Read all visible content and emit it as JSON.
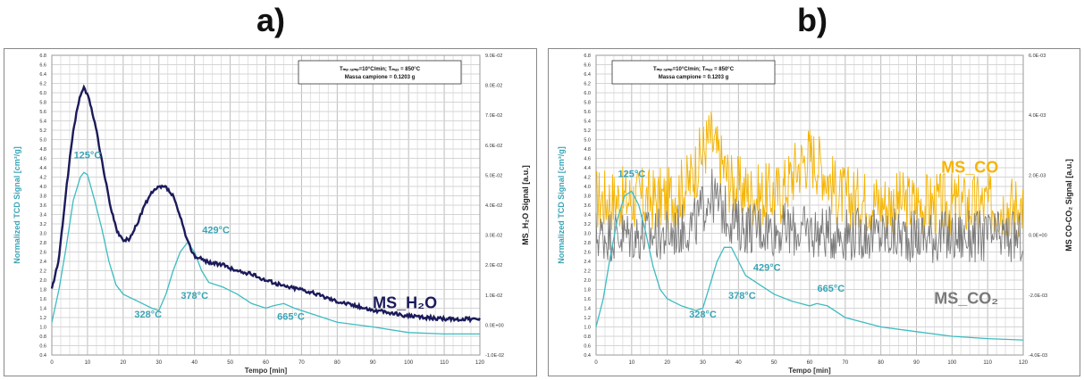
{
  "panels": [
    {
      "label": "a)"
    },
    {
      "label": "b)"
    }
  ],
  "chart_data": [
    {
      "type": "line",
      "panel": "a)",
      "xlabel": "Tempo [min]",
      "ylabel": "Normalized TCD Signal [cm³/g]",
      "ylabel2": "MS_H₂O Signal [a.u.]",
      "xlim": [
        0,
        120
      ],
      "ylim": [
        0.4,
        6.8
      ],
      "y2lim": [
        -0.01,
        0.09
      ],
      "xticks": [
        "0",
        "10",
        "20",
        "30",
        "40",
        "50",
        "60",
        "70",
        "80",
        "90",
        "100",
        "110",
        "120"
      ],
      "yticks": [
        "0.4",
        "0.6",
        "0.8",
        "1.0",
        "1.2",
        "1.4",
        "1.6",
        "1.8",
        "2.0",
        "2.2",
        "2.4",
        "2.6",
        "2.8",
        "3.0",
        "3.2",
        "3.4",
        "3.6",
        "3.8",
        "4.0",
        "4.2",
        "4.4",
        "4.6",
        "4.8",
        "5.0",
        "5.2",
        "5.4",
        "5.6",
        "5.8",
        "6.0",
        "6.2",
        "6.4",
        "6.6",
        "6.8"
      ],
      "y2ticks": [
        "-1.0E-02",
        "0.0E+00",
        "1.0E-02",
        "2.0E-02",
        "3.0E-02",
        "4.0E-02",
        "5.0E-02",
        "6.0E-02",
        "7.0E-02",
        "8.0E-02",
        "9.0E-02"
      ],
      "grid": true,
      "infobox": {
        "line1": "Tₘₚ ᵣₐₘₚ=10°C/min; Tₘₐₓ = 850°C",
        "line2": "Massa campione = 0.1203 g"
      },
      "series": [
        {
          "name": "TCD",
          "axis": "left",
          "color": "#3dbcc0",
          "points": [
            [
              0,
              1.1
            ],
            [
              2,
              1.8
            ],
            [
              4,
              2.7
            ],
            [
              6,
              3.7
            ],
            [
              8,
              4.2
            ],
            [
              9,
              4.3
            ],
            [
              10,
              4.25
            ],
            [
              12,
              3.7
            ],
            [
              14,
              3.1
            ],
            [
              16,
              2.4
            ],
            [
              18,
              1.9
            ],
            [
              20,
              1.7
            ],
            [
              24,
              1.55
            ],
            [
              28,
              1.4
            ],
            [
              30,
              1.35
            ],
            [
              32,
              1.7
            ],
            [
              34,
              2.2
            ],
            [
              36,
              2.6
            ],
            [
              38,
              2.8
            ],
            [
              40,
              2.6
            ],
            [
              42,
              2.2
            ],
            [
              44,
              1.95
            ],
            [
              48,
              1.85
            ],
            [
              52,
              1.7
            ],
            [
              56,
              1.5
            ],
            [
              60,
              1.4
            ],
            [
              62,
              1.45
            ],
            [
              65,
              1.5
            ],
            [
              68,
              1.4
            ],
            [
              72,
              1.3
            ],
            [
              80,
              1.1
            ],
            [
              90,
              1.0
            ],
            [
              100,
              0.88
            ],
            [
              110,
              0.85
            ],
            [
              120,
              0.85
            ]
          ]
        },
        {
          "name": "MS_H₂O",
          "axis": "right",
          "color": "#1b1a5a",
          "points": [
            [
              0,
              0.012
            ],
            [
              2,
              0.022
            ],
            [
              4,
              0.045
            ],
            [
              6,
              0.065
            ],
            [
              8,
              0.077
            ],
            [
              9,
              0.079
            ],
            [
              10,
              0.077
            ],
            [
              12,
              0.068
            ],
            [
              14,
              0.055
            ],
            [
              16,
              0.042
            ],
            [
              18,
              0.032
            ],
            [
              20,
              0.028
            ],
            [
              22,
              0.029
            ],
            [
              24,
              0.034
            ],
            [
              26,
              0.04
            ],
            [
              28,
              0.044
            ],
            [
              30,
              0.046
            ],
            [
              32,
              0.046
            ],
            [
              34,
              0.043
            ],
            [
              36,
              0.036
            ],
            [
              38,
              0.028
            ],
            [
              40,
              0.023
            ],
            [
              44,
              0.021
            ],
            [
              48,
              0.02
            ],
            [
              52,
              0.018
            ],
            [
              56,
              0.017
            ],
            [
              60,
              0.015
            ],
            [
              65,
              0.013
            ],
            [
              70,
              0.012
            ],
            [
              75,
              0.01
            ],
            [
              80,
              0.008
            ],
            [
              90,
              0.005
            ],
            [
              100,
              0.003
            ],
            [
              110,
              0.002
            ],
            [
              120,
              0.002
            ]
          ]
        }
      ],
      "annotations": [
        {
          "text": "125°C",
          "x": 10,
          "y": 4.6,
          "color": "#3aa4b5"
        },
        {
          "text": "429°C",
          "x": 46,
          "y": 3.0,
          "color": "#3aa4b5"
        },
        {
          "text": "378°C",
          "x": 40,
          "y": 1.6,
          "color": "#3aa4b5"
        },
        {
          "text": "328°C",
          "x": 27,
          "y": 1.2,
          "color": "#3aa4b5"
        },
        {
          "text": "665°C",
          "x": 67,
          "y": 1.15,
          "color": "#3aa4b5"
        },
        {
          "text": "MS_H₂O",
          "x": 99,
          "y": 1.4,
          "color": "#1b1a5a"
        }
      ]
    },
    {
      "type": "line",
      "panel": "b)",
      "xlabel": "Tempo [min]",
      "ylabel": "Normalized TCD Signal [cm³/g]",
      "ylabel2": "MS CO-CO₂ Signal [a.u.]",
      "xlim": [
        0,
        120
      ],
      "ylim": [
        0.4,
        6.8
      ],
      "y2lim": [
        -0.004,
        0.006
      ],
      "xticks": [
        "0",
        "10",
        "20",
        "30",
        "40",
        "50",
        "60",
        "70",
        "80",
        "90",
        "100",
        "110",
        "120"
      ],
      "yticks": [
        "0.4",
        "0.6",
        "0.8",
        "1.0",
        "1.2",
        "1.4",
        "1.6",
        "1.8",
        "2.0",
        "2.2",
        "2.4",
        "2.6",
        "2.8",
        "3.0",
        "3.2",
        "3.4",
        "3.6",
        "3.8",
        "4.0",
        "4.2",
        "4.4",
        "4.6",
        "4.8",
        "5.0",
        "5.2",
        "5.4",
        "5.6",
        "5.8",
        "6.0",
        "6.2",
        "6.4",
        "6.6",
        "6.8"
      ],
      "y2ticks": [
        "-4.0E-03",
        "-2.0E-03",
        "0.0E+00",
        "2.0E-03",
        "4.0E-03",
        "6.0E-03"
      ],
      "grid": true,
      "infobox": {
        "line1": "Tₘₚ ᵣₐₘₚ=10°C/min; Tₘₐₓ = 850°C",
        "line2": "Massa campione = 0.1203 g"
      },
      "series": [
        {
          "name": "MS_CO",
          "axis": "right",
          "color": "#f5b400",
          "noise": 0.0011,
          "points": [
            [
              0,
              0.0012
            ],
            [
              20,
              0.0012
            ],
            [
              26,
              0.0017
            ],
            [
              30,
              0.0028
            ],
            [
              32,
              0.0033
            ],
            [
              34,
              0.0027
            ],
            [
              38,
              0.0017
            ],
            [
              45,
              0.0013
            ],
            [
              52,
              0.0014
            ],
            [
              56,
              0.0022
            ],
            [
              60,
              0.0027
            ],
            [
              64,
              0.0022
            ],
            [
              68,
              0.0013
            ],
            [
              80,
              0.0011
            ],
            [
              100,
              0.001
            ],
            [
              120,
              0.001
            ]
          ]
        },
        {
          "name": "MS_CO₂",
          "axis": "right",
          "color": "#7a7a7a",
          "noise": 0.0009,
          "points": [
            [
              0,
              0.0
            ],
            [
              20,
              0.0
            ],
            [
              28,
              0.0004
            ],
            [
              32,
              0.0014
            ],
            [
              36,
              0.0008
            ],
            [
              40,
              0.0003
            ],
            [
              60,
              0.0001
            ],
            [
              80,
              0.0
            ],
            [
              120,
              -0.0001
            ]
          ]
        },
        {
          "name": "TCD",
          "axis": "left",
          "color": "#3dbcc0",
          "points": [
            [
              0,
              1.0
            ],
            [
              2,
              1.6
            ],
            [
              4,
              2.5
            ],
            [
              6,
              3.3
            ],
            [
              8,
              3.8
            ],
            [
              10,
              3.9
            ],
            [
              12,
              3.6
            ],
            [
              14,
              3.0
            ],
            [
              16,
              2.3
            ],
            [
              18,
              1.8
            ],
            [
              20,
              1.6
            ],
            [
              24,
              1.45
            ],
            [
              28,
              1.35
            ],
            [
              30,
              1.4
            ],
            [
              32,
              1.9
            ],
            [
              34,
              2.4
            ],
            [
              36,
              2.7
            ],
            [
              38,
              2.7
            ],
            [
              40,
              2.4
            ],
            [
              42,
              2.1
            ],
            [
              46,
              1.9
            ],
            [
              50,
              1.7
            ],
            [
              55,
              1.55
            ],
            [
              60,
              1.45
            ],
            [
              62,
              1.5
            ],
            [
              65,
              1.45
            ],
            [
              70,
              1.2
            ],
            [
              80,
              1.0
            ],
            [
              90,
              0.9
            ],
            [
              100,
              0.8
            ],
            [
              110,
              0.75
            ],
            [
              120,
              0.72
            ]
          ]
        }
      ],
      "annotations": [
        {
          "text": "125°C",
          "x": 10,
          "y": 4.2,
          "color": "#3aa4b5"
        },
        {
          "text": "429°C",
          "x": 48,
          "y": 2.2,
          "color": "#3aa4b5"
        },
        {
          "text": "378°C",
          "x": 41,
          "y": 1.6,
          "color": "#3aa4b5"
        },
        {
          "text": "328°C",
          "x": 30,
          "y": 1.2,
          "color": "#3aa4b5"
        },
        {
          "text": "665°C",
          "x": 66,
          "y": 1.75,
          "color": "#3aa4b5"
        },
        {
          "text": "MS_CO",
          "x": 105,
          "y": 4.3,
          "color": "#f5b400"
        },
        {
          "text": "MS_CO₂",
          "x": 104,
          "y": 1.5,
          "color": "#7a7a7a"
        }
      ]
    }
  ]
}
